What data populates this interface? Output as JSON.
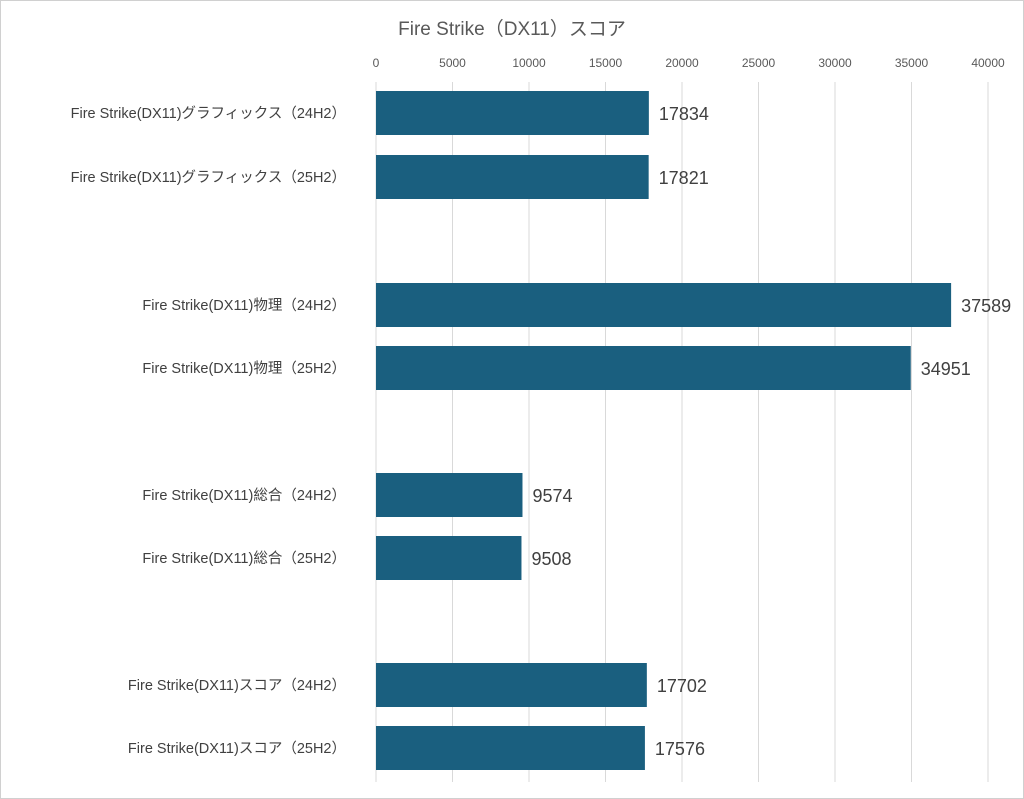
{
  "chart_data": {
    "type": "bar",
    "orientation": "horizontal",
    "title": "Fire Strike（DX11）スコア",
    "xlabel": "",
    "ylabel": "",
    "xlim": [
      0,
      40000
    ],
    "ticks": [
      0,
      5000,
      10000,
      15000,
      20000,
      25000,
      30000,
      35000,
      40000
    ],
    "tick_labels": [
      "0",
      "5000",
      "10000",
      "15000",
      "20000",
      "25000",
      "30000",
      "35000",
      "40000"
    ],
    "grid": true,
    "legend": "none",
    "bar_color": "#1a5f7f",
    "categories": [
      "Fire Strike(DX11)グラフィックス（24H2）",
      "Fire Strike(DX11)グラフィックス（25H2）",
      "Fire Strike(DX11)物理（24H2）",
      "Fire Strike(DX11)物理（25H2）",
      "Fire Strike(DX11)総合（24H2）",
      "Fire Strike(DX11)総合（25H2）",
      "Fire Strike(DX11)スコア（24H2）",
      "Fire Strike(DX11)スコア（25H2）"
    ],
    "values": [
      17834,
      17821,
      37589,
      34951,
      9574,
      9508,
      17702,
      17576
    ],
    "value_labels": [
      "17834",
      "17821",
      "37589",
      "34951",
      "9574",
      "9508",
      "17702",
      "17576"
    ]
  }
}
